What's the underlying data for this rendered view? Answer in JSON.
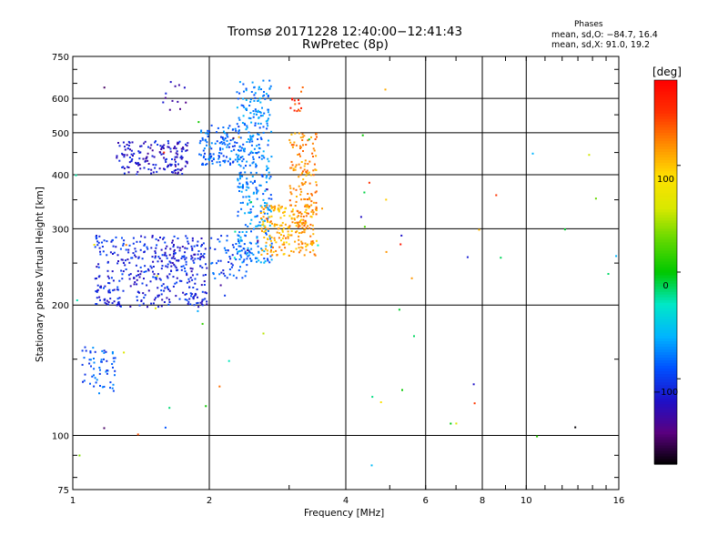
{
  "title_line1": "Tromsø 20171228 12:40:00−12:41:43",
  "title_line2": "RwPretec (8p)",
  "phase_stats": {
    "heading": "Phases",
    "line_o": "mean, sd,O: −84.7, 16.4",
    "line_x": "mean, sd,X:  91.0, 19.2"
  },
  "colorbar": {
    "unit_label": "[deg]",
    "range": [
      -180,
      180
    ],
    "ticks": [
      100,
      0,
      -100
    ],
    "colors_low_to_high": [
      "#000000",
      "#5a0080",
      "#1e10c8",
      "#0050ff",
      "#00b4ff",
      "#00e8c8",
      "#00c800",
      "#60d800",
      "#d8e800",
      "#ffe000",
      "#ff8c00",
      "#ff3000",
      "#ff0000"
    ]
  },
  "chart_data": {
    "type": "scatter",
    "title": "Tromsø 20171228 12:40:00−12:41:43",
    "subtitle": "RwPretec (8p)",
    "xlabel": "Frequency [MHz]",
    "ylabel": "Stationary phase Virtual Height [km]",
    "x_scale": "log",
    "y_scale": "log",
    "xlim": [
      1,
      16
    ],
    "ylim": [
      75,
      750
    ],
    "x_ticks": [
      1,
      2,
      4,
      6,
      8,
      10,
      16
    ],
    "y_ticks": [
      75,
      100,
      200,
      300,
      400,
      500,
      600,
      750
    ],
    "grid": true,
    "color_encoding": "phase [deg]",
    "series": [
      {
        "x_range": [
          1.05,
          1.25
        ],
        "y_range": [
          125,
          160
        ],
        "phase": -90,
        "count": 60
      },
      {
        "x_range": [
          1.12,
          1.98
        ],
        "y_range": [
          198,
          290
        ],
        "phase": -110,
        "count": 420
      },
      {
        "x_range": [
          1.25,
          1.8
        ],
        "y_range": [
          400,
          480
        ],
        "phase": -120,
        "count": 160
      },
      {
        "x_range": [
          1.5,
          1.8
        ],
        "y_range": [
          560,
          660
        ],
        "phase": -130,
        "count": 12
      },
      {
        "x_range": [
          1.9,
          2.35
        ],
        "y_range": [
          420,
          520
        ],
        "phase": -85,
        "count": 120
      },
      {
        "x_range": [
          2.3,
          2.75
        ],
        "y_range": [
          250,
          660
        ],
        "phase": -75,
        "count": 360
      },
      {
        "x_range": [
          2.0,
          2.45
        ],
        "y_range": [
          230,
          290
        ],
        "phase": -95,
        "count": 60
      },
      {
        "x_range": [
          2.6,
          3.45
        ],
        "y_range": [
          260,
          340
        ],
        "phase": 110,
        "count": 200
      },
      {
        "x_range": [
          3.0,
          3.45
        ],
        "y_range": [
          300,
          500
        ],
        "phase": 120,
        "count": 150
      },
      {
        "x_range": [
          3.0,
          3.25
        ],
        "y_range": [
          560,
          640
        ],
        "phase": 150,
        "count": 15
      }
    ]
  }
}
